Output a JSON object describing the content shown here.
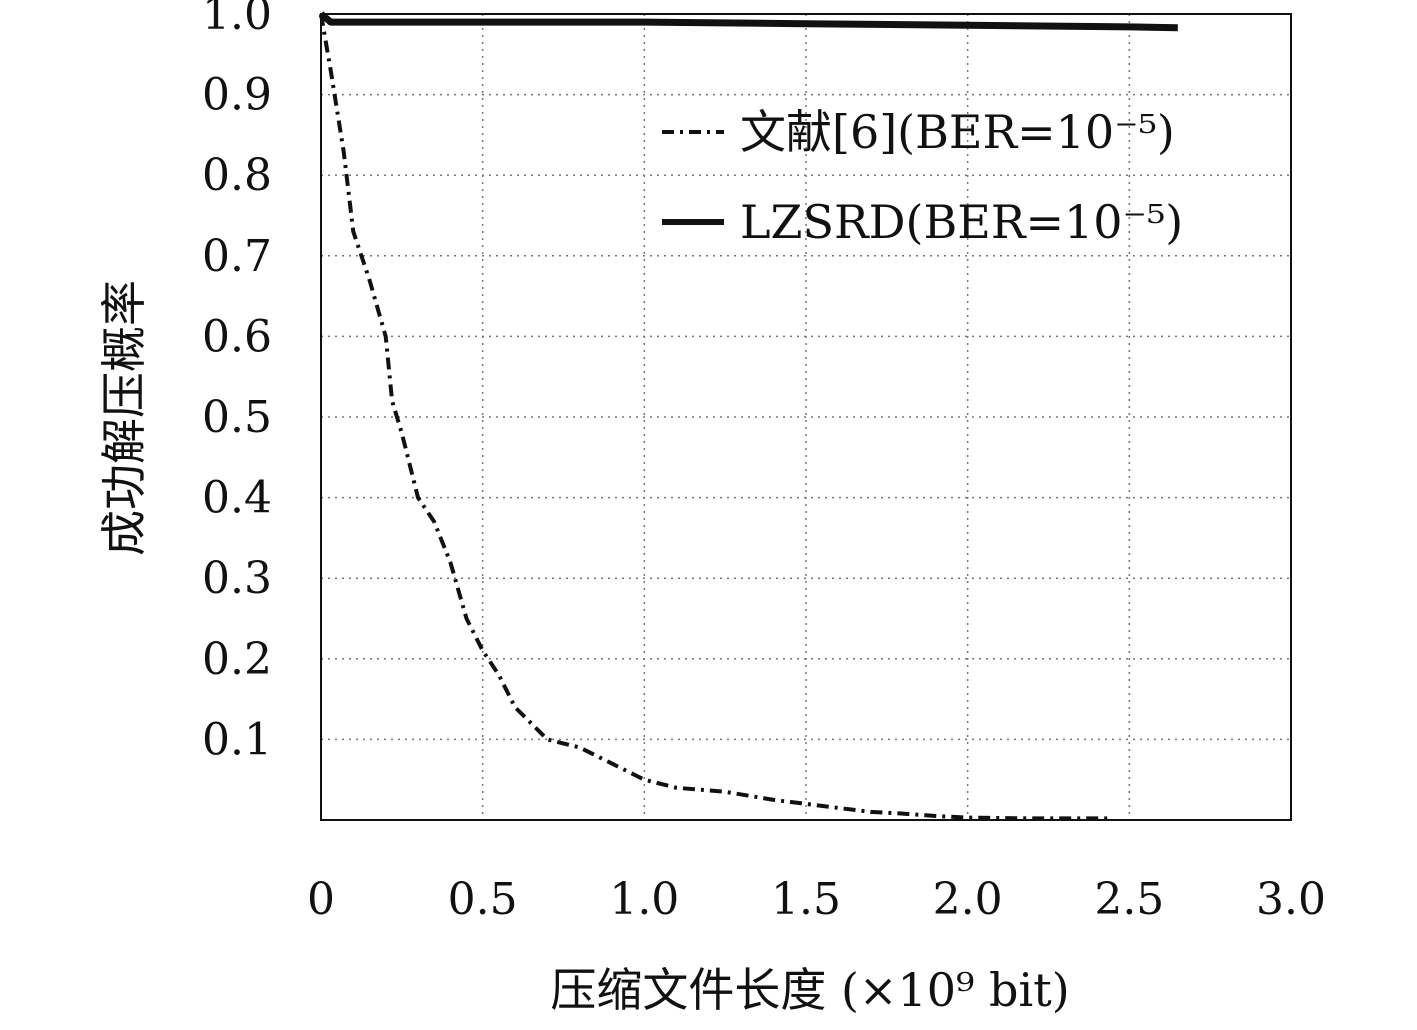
{
  "chart_data": {
    "type": "line",
    "xlabel": "压缩文件长度 (×10⁹ bit)",
    "ylabel": "成功解压概率",
    "xlim": [
      0,
      3.0
    ],
    "ylim": [
      0,
      1.0
    ],
    "xticks": [
      "0",
      "0.5",
      "1.0",
      "1.5",
      "2.0",
      "2.5",
      "3.0"
    ],
    "xtick_values": [
      0,
      0.5,
      1.0,
      1.5,
      2.0,
      2.5,
      3.0
    ],
    "yticks": [
      "0.1",
      "0.2",
      "0.3",
      "0.4",
      "0.5",
      "0.6",
      "0.7",
      "0.8",
      "0.9",
      "1.0"
    ],
    "ytick_values": [
      0.1,
      0.2,
      0.3,
      0.4,
      0.5,
      0.6,
      0.7,
      0.8,
      0.9,
      1.0
    ],
    "grid": true,
    "legend_position": "top-right",
    "series": [
      {
        "name": "文献[6](BER=10⁻⁵)",
        "style": "dash-dot",
        "color": "#111111",
        "x": [
          0,
          0.03,
          0.07,
          0.1,
          0.15,
          0.2,
          0.22,
          0.25,
          0.3,
          0.35,
          0.4,
          0.45,
          0.5,
          0.55,
          0.6,
          0.7,
          0.8,
          0.9,
          1.0,
          1.1,
          1.25,
          1.4,
          1.5,
          1.6,
          1.7,
          1.8,
          1.9,
          2.0,
          2.2,
          2.4,
          2.45
        ],
        "values": [
          1.0,
          0.93,
          0.83,
          0.73,
          0.67,
          0.6,
          0.52,
          0.48,
          0.4,
          0.37,
          0.32,
          0.25,
          0.21,
          0.18,
          0.14,
          0.1,
          0.09,
          0.07,
          0.05,
          0.04,
          0.035,
          0.025,
          0.02,
          0.015,
          0.01,
          0.008,
          0.005,
          0.003,
          0.002,
          0.002,
          0.002
        ]
      },
      {
        "name": "LZSRD(BER=10⁻⁵)",
        "style": "solid",
        "color": "#111111",
        "x": [
          0,
          0.03,
          0.1,
          0.5,
          1.0,
          1.5,
          2.0,
          2.5,
          2.65
        ],
        "values": [
          1.0,
          0.99,
          0.99,
          0.99,
          0.99,
          0.988,
          0.986,
          0.984,
          0.983
        ]
      }
    ]
  }
}
